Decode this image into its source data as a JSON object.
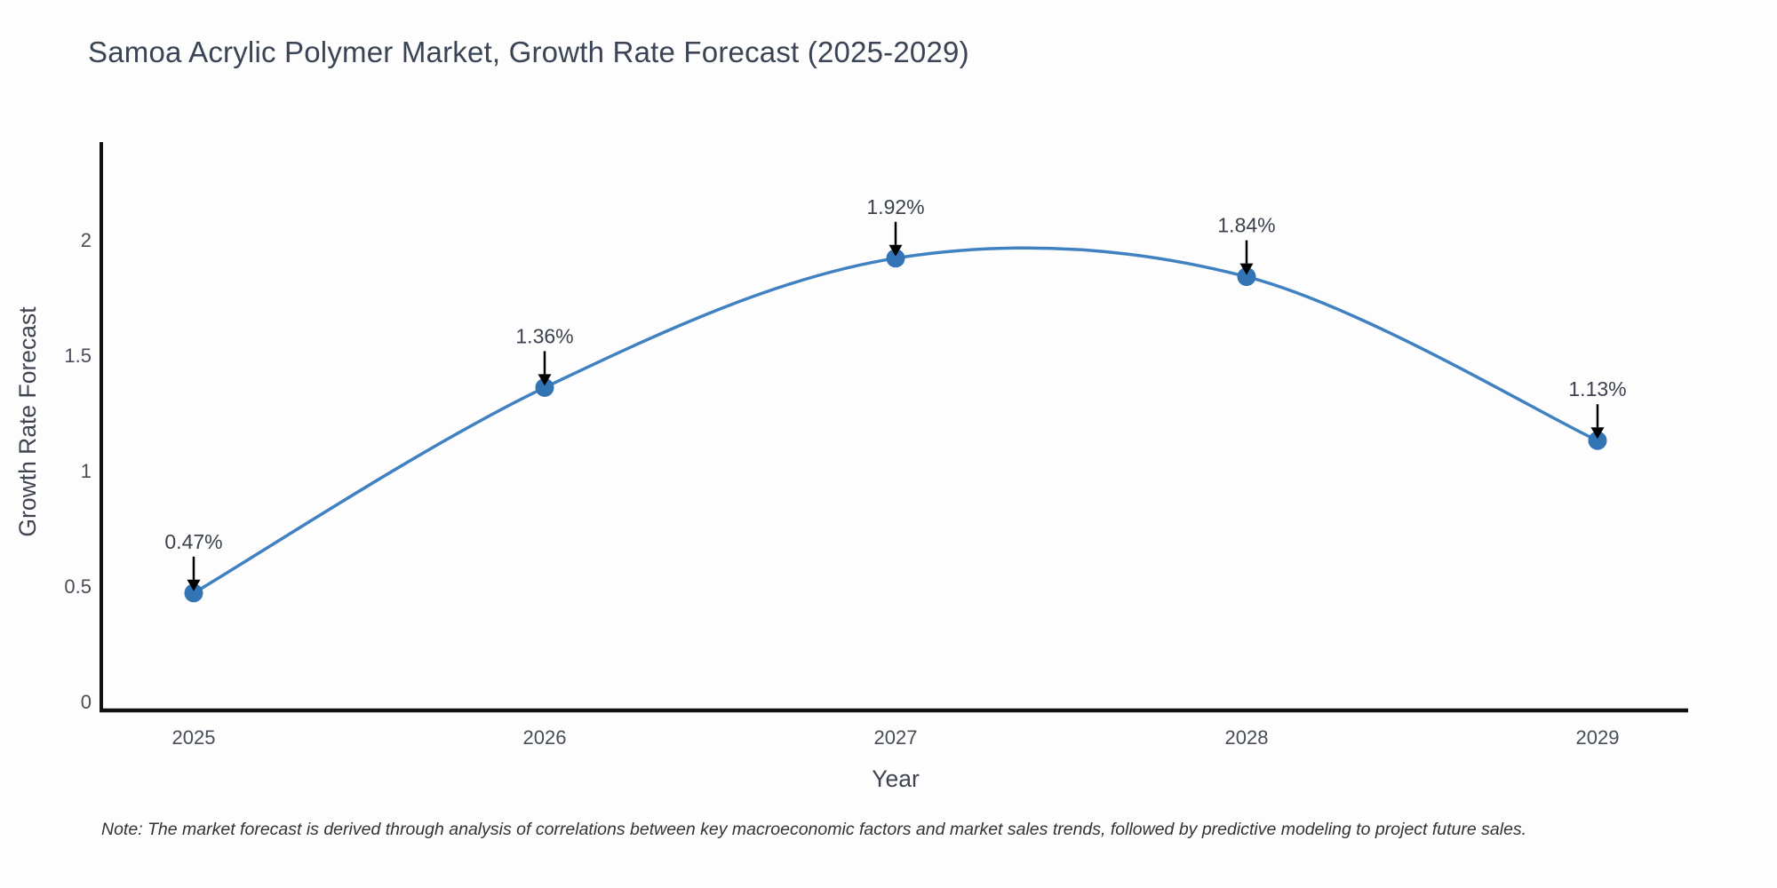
{
  "note": "Note: The market forecast is derived through analysis of correlations between key macroeconomic factors and market sales trends, followed by predictive modeling to project future sales.",
  "colors": {
    "line": "#4081c2",
    "marker": "#3374b5",
    "axis": "#111111",
    "arrow": "#000000",
    "tick_text": "#474d57",
    "axis_title_text": "#3f4550",
    "point_label_text": "#3b414d",
    "title_text": "#3a4454",
    "background": "#fdfdfd"
  },
  "chart_data": {
    "type": "line",
    "title": "Samoa Acrylic Polymer Market, Growth Rate Forecast (2025-2029)",
    "x": [
      2025,
      2026,
      2027,
      2028,
      2029
    ],
    "values": [
      0.47,
      1.36,
      1.92,
      1.84,
      1.13
    ],
    "point_labels": [
      "0.47%",
      "1.36%",
      "1.92%",
      "1.84%",
      "1.13%"
    ],
    "xlabel": "Year",
    "ylabel": "Growth Rate Forecast",
    "yticks": [
      0,
      0.5,
      1,
      1.5,
      2
    ],
    "ylim": [
      0,
      2.45
    ],
    "line_shape": "spline",
    "grid": false,
    "legend": "none",
    "annotations": "black arrows pointing down from each value label to its data point"
  }
}
